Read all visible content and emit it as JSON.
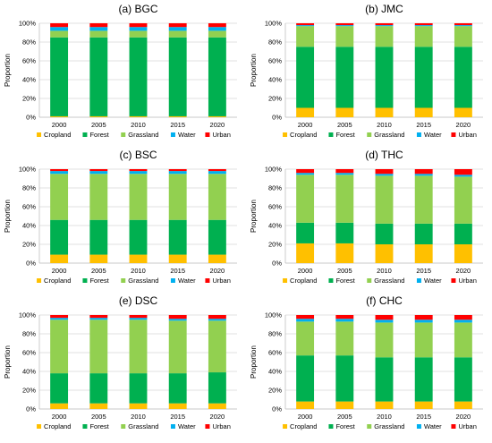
{
  "colors": {
    "Cropland": "#FFC000",
    "Forest": "#00B050",
    "Grassland": "#92D050",
    "Water": "#00B0F0",
    "Urban": "#FF0000"
  },
  "chart_data": [
    {
      "type": "bar",
      "stacked": true,
      "title": "(a) BGC",
      "ylabel": "Proportion",
      "xlabel": "",
      "ylim": [
        0,
        100
      ],
      "yticks": [
        "0%",
        "20%",
        "40%",
        "60%",
        "80%",
        "100%"
      ],
      "categories": [
        "2000",
        "2005",
        "2010",
        "2015",
        "2020"
      ],
      "legend": [
        "Cropland",
        "Forest",
        "Grassland",
        "Water",
        "Urban"
      ],
      "series": [
        {
          "name": "Cropland",
          "values": [
            1,
            1,
            1,
            1,
            1
          ]
        },
        {
          "name": "Forest",
          "values": [
            84,
            84,
            84,
            84,
            84
          ]
        },
        {
          "name": "Grassland",
          "values": [
            7,
            7,
            7,
            7,
            7
          ]
        },
        {
          "name": "Water",
          "values": [
            4,
            4,
            4,
            4,
            4
          ]
        },
        {
          "name": "Urban",
          "values": [
            4,
            4,
            4,
            4,
            4
          ]
        }
      ]
    },
    {
      "type": "bar",
      "stacked": true,
      "title": "(b) JMC",
      "ylabel": "Proportion",
      "xlabel": "",
      "ylim": [
        0,
        100
      ],
      "yticks": [
        "0%",
        "20%",
        "40%",
        "60%",
        "80%",
        "100%"
      ],
      "categories": [
        "2000",
        "2005",
        "2010",
        "2015",
        "2020"
      ],
      "legend": [
        "Cropland",
        "Forest",
        "Grassland",
        "Water",
        "Urban"
      ],
      "series": [
        {
          "name": "Cropland",
          "values": [
            10,
            10,
            10,
            10,
            10
          ]
        },
        {
          "name": "Forest",
          "values": [
            65,
            65,
            65,
            65,
            65
          ]
        },
        {
          "name": "Grassland",
          "values": [
            22,
            22,
            22,
            22,
            22
          ]
        },
        {
          "name": "Water",
          "values": [
            1,
            1,
            1,
            1,
            1
          ]
        },
        {
          "name": "Urban",
          "values": [
            2,
            2,
            2,
            2,
            2
          ]
        }
      ]
    },
    {
      "type": "bar",
      "stacked": true,
      "title": "(c) BSC",
      "ylabel": "Proportion",
      "xlabel": "",
      "ylim": [
        0,
        100
      ],
      "yticks": [
        "0%",
        "20%",
        "40%",
        "60%",
        "80%",
        "100%"
      ],
      "categories": [
        "2000",
        "2005",
        "2010",
        "2015",
        "2020"
      ],
      "legend": [
        "Cropland",
        "Forest",
        "Grassland",
        "Water",
        "Urban"
      ],
      "series": [
        {
          "name": "Cropland",
          "values": [
            9,
            9,
            9,
            9,
            9
          ]
        },
        {
          "name": "Forest",
          "values": [
            37,
            37,
            37,
            37,
            37
          ]
        },
        {
          "name": "Grassland",
          "values": [
            49,
            49,
            49,
            49,
            49
          ]
        },
        {
          "name": "Water",
          "values": [
            3,
            3,
            3,
            3,
            3
          ]
        },
        {
          "name": "Urban",
          "values": [
            2,
            2,
            2,
            2,
            2
          ]
        }
      ]
    },
    {
      "type": "bar",
      "stacked": true,
      "title": "(d) THC",
      "ylabel": "Proportion",
      "xlabel": "",
      "ylim": [
        0,
        100
      ],
      "yticks": [
        "0%",
        "20%",
        "40%",
        "60%",
        "80%",
        "100%"
      ],
      "categories": [
        "2000",
        "2005",
        "2010",
        "2015",
        "2020"
      ],
      "legend": [
        "Cropland",
        "Forest",
        "Grassland",
        "Water",
        "Urban"
      ],
      "series": [
        {
          "name": "Cropland",
          "values": [
            21,
            21,
            20,
            20,
            20
          ]
        },
        {
          "name": "Forest",
          "values": [
            22,
            22,
            22,
            22,
            22
          ]
        },
        {
          "name": "Grassland",
          "values": [
            51,
            51,
            51,
            51,
            50
          ]
        },
        {
          "name": "Water",
          "values": [
            2,
            2,
            2,
            2,
            2
          ]
        },
        {
          "name": "Urban",
          "values": [
            4,
            4,
            5,
            5,
            6
          ]
        }
      ]
    },
    {
      "type": "bar",
      "stacked": true,
      "title": "(e) DSC",
      "ylabel": "Proportion",
      "xlabel": "",
      "ylim": [
        0,
        100
      ],
      "yticks": [
        "0%",
        "20%",
        "40%",
        "60%",
        "80%",
        "100%"
      ],
      "categories": [
        "2000",
        "2005",
        "2010",
        "2015",
        "2020"
      ],
      "legend": [
        "Cropland",
        "Forest",
        "Grassland",
        "Water",
        "Urban"
      ],
      "series": [
        {
          "name": "Cropland",
          "values": [
            6,
            6,
            6,
            6,
            6
          ]
        },
        {
          "name": "Forest",
          "values": [
            32,
            32,
            32,
            32,
            33
          ]
        },
        {
          "name": "Grassland",
          "values": [
            57,
            57,
            57,
            56,
            55
          ]
        },
        {
          "name": "Water",
          "values": [
            2,
            2,
            2,
            2,
            2
          ]
        },
        {
          "name": "Urban",
          "values": [
            3,
            3,
            3,
            4,
            4
          ]
        }
      ]
    },
    {
      "type": "bar",
      "stacked": true,
      "title": "(f) CHC",
      "ylabel": "Proportion",
      "xlabel": "",
      "ylim": [
        0,
        100
      ],
      "yticks": [
        "0%",
        "20%",
        "40%",
        "60%",
        "80%",
        "100%"
      ],
      "categories": [
        "2000",
        "2005",
        "2010",
        "2015",
        "2020"
      ],
      "legend": [
        "Cropland",
        "Forest",
        "Grassland",
        "Water",
        "Urban"
      ],
      "series": [
        {
          "name": "Cropland",
          "values": [
            8,
            8,
            8,
            8,
            8
          ]
        },
        {
          "name": "Forest",
          "values": [
            49,
            49,
            47,
            47,
            47
          ]
        },
        {
          "name": "Grassland",
          "values": [
            36,
            36,
            37,
            37,
            37
          ]
        },
        {
          "name": "Water",
          "values": [
            3,
            3,
            3,
            3,
            3
          ]
        },
        {
          "name": "Urban",
          "values": [
            4,
            4,
            5,
            5,
            5
          ]
        }
      ]
    }
  ]
}
